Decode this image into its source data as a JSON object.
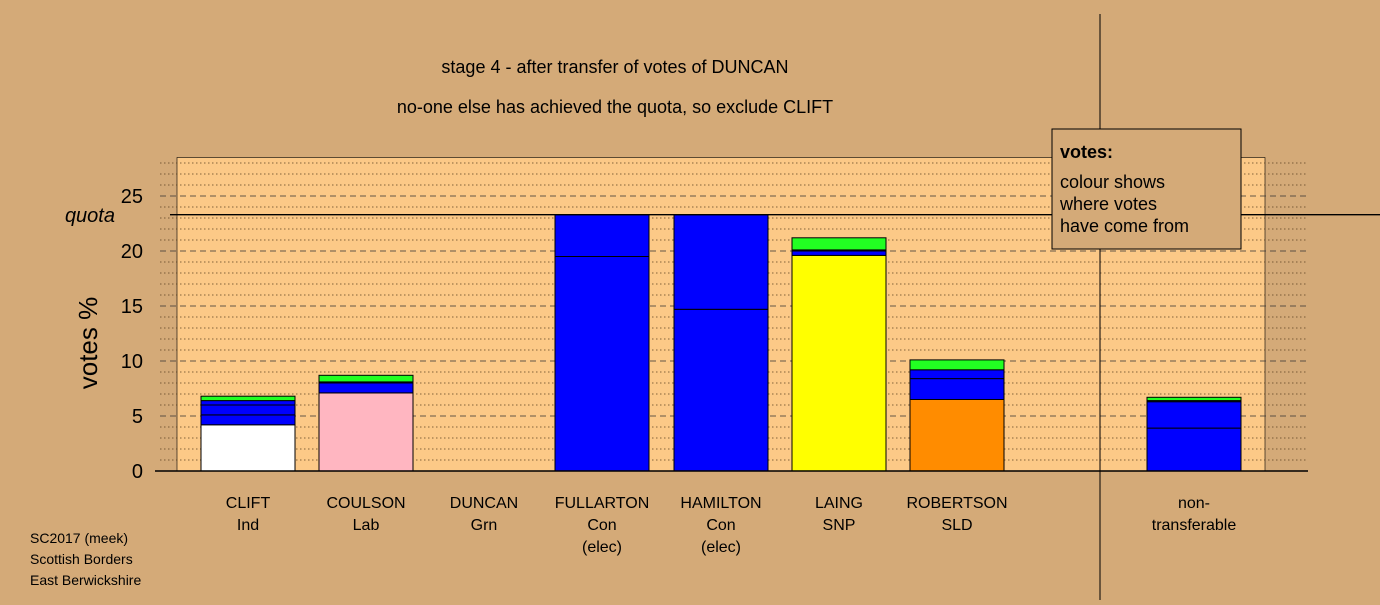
{
  "colors": {
    "background": "#d4aa78",
    "plot_area": "#fcc987",
    "white": "#ffffff",
    "pink": "#ffb6c1",
    "blue": "#0000ff",
    "green": "#22ff22",
    "yellow": "#ffff00",
    "orange": "#ff8c00"
  },
  "chart_data": {
    "type": "bar",
    "stacked": true,
    "title": "stage 4 - after transfer of votes of DUNCAN",
    "subtitle": "no-one else has achieved the quota, so exclude CLIFT",
    "ylabel": "votes %",
    "ylim": [
      0,
      28.5
    ],
    "yticks": [
      "0",
      "5",
      "10",
      "15",
      "20",
      "25"
    ],
    "quota": {
      "label": "quota",
      "value": 23.3
    },
    "grid": true,
    "legend": {
      "placement": "top-right",
      "title": "votes:",
      "lines": [
        "colour shows",
        "where votes",
        "have come from"
      ]
    },
    "categories": [
      {
        "name": "CLIFT",
        "party": "Ind",
        "status": ""
      },
      {
        "name": "COULSON",
        "party": "Lab",
        "status": ""
      },
      {
        "name": "DUNCAN",
        "party": "Grn",
        "status": ""
      },
      {
        "name": "FULLARTON",
        "party": "Con",
        "status": "(elec)"
      },
      {
        "name": "HAMILTON",
        "party": "Con",
        "status": "(elec)"
      },
      {
        "name": "LAING",
        "party": "SNP",
        "status": ""
      },
      {
        "name": "ROBERTSON",
        "party": "SLD",
        "status": ""
      },
      {
        "name": "non-",
        "party": "transferable",
        "status": ""
      }
    ],
    "segments": [
      [
        {
          "value": 4.2,
          "color": "white"
        },
        {
          "value": 0.9,
          "color": "blue"
        },
        {
          "value": 0.9,
          "color": "blue"
        },
        {
          "value": 0.4,
          "color": "blue"
        },
        {
          "value": 0.4,
          "color": "green"
        }
      ],
      [
        {
          "value": 7.1,
          "color": "pink"
        },
        {
          "value": 0.9,
          "color": "blue"
        },
        {
          "value": 0.1,
          "color": "blue"
        },
        {
          "value": 0.6,
          "color": "green"
        }
      ],
      [],
      [
        {
          "value": 19.5,
          "color": "blue"
        },
        {
          "value": 3.8,
          "color": "blue"
        }
      ],
      [
        {
          "value": 14.7,
          "color": "blue"
        },
        {
          "value": 8.6,
          "color": "blue"
        }
      ],
      [
        {
          "value": 19.6,
          "color": "yellow"
        },
        {
          "value": 0.4,
          "color": "blue"
        },
        {
          "value": 0.1,
          "color": "blue"
        },
        {
          "value": 1.1,
          "color": "green"
        }
      ],
      [
        {
          "value": 6.5,
          "color": "orange"
        },
        {
          "value": 1.9,
          "color": "blue"
        },
        {
          "value": 0.8,
          "color": "blue"
        },
        {
          "value": 0.9,
          "color": "green"
        }
      ],
      [
        {
          "value": 3.9,
          "color": "blue"
        },
        {
          "value": 2.4,
          "color": "blue"
        },
        {
          "value": 0.1,
          "color": "blue"
        },
        {
          "value": 0.3,
          "color": "green"
        }
      ]
    ]
  },
  "footer": {
    "line1": "SC2017 (meek)",
    "line2": "Scottish Borders",
    "line3": "East Berwickshire"
  }
}
